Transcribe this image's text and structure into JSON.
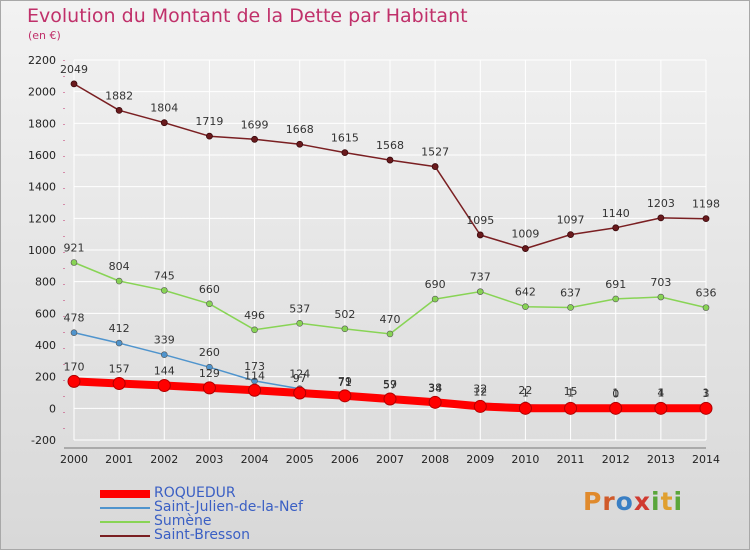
{
  "title": "Evolution du Montant de la Dette par Habitant",
  "subtitle": "(en €)",
  "logo": {
    "text": "Proxiti",
    "letters": [
      "P",
      "r",
      "o",
      "x",
      "i",
      "t",
      "i"
    ],
    "colors": [
      "#e08a2c",
      "#d05a2a",
      "#3a7fc4",
      "#d03a30",
      "#5aa63a",
      "#e0a030",
      "#5aa63a"
    ]
  },
  "chart_data": {
    "type": "line",
    "title": "Evolution du Montant de la Dette par Habitant",
    "subtitle": "(en €)",
    "x": [
      2000,
      2001,
      2002,
      2003,
      2004,
      2005,
      2006,
      2007,
      2008,
      2009,
      2010,
      2011,
      2012,
      2013,
      2014
    ],
    "ylim": [
      -200,
      2200
    ],
    "yticks": [
      -200,
      0,
      200,
      400,
      600,
      800,
      1000,
      1200,
      1400,
      1600,
      1800,
      2000,
      2200
    ],
    "grid": true,
    "legend_position": "bottom-left",
    "series": [
      {
        "name": "ROQUEDUR",
        "color": "#ff0000",
        "width": 8,
        "values": [
          170,
          157,
          144,
          129,
          114,
          97,
          79,
          59,
          38,
          12,
          0,
          0,
          0,
          0,
          0
        ],
        "labels": [
          170,
          157,
          144,
          129,
          114,
          97,
          79,
          59,
          38,
          12,
          null,
          null,
          null,
          null,
          null
        ]
      },
      {
        "name": "Saint-Julien-de-la-Nef",
        "color": "#4f94cd",
        "width": 1.5,
        "values": [
          478,
          412,
          339,
          260,
          173,
          124,
          71,
          57,
          34,
          32,
          22,
          15,
          0,
          4,
          3
        ],
        "labels": [
          478,
          412,
          339,
          260,
          173,
          124,
          71,
          57,
          34,
          32,
          22,
          15,
          0,
          4,
          3
        ]
      },
      {
        "name": "Sumène",
        "color": "#88d455",
        "width": 1.5,
        "values": [
          921,
          804,
          745,
          660,
          496,
          537,
          502,
          470,
          690,
          737,
          642,
          637,
          691,
          703,
          636
        ],
        "labels": [
          921,
          804,
          745,
          660,
          496,
          537,
          502,
          470,
          690,
          737,
          642,
          637,
          691,
          703,
          636
        ]
      },
      {
        "name": "Saint-Bresson",
        "color": "#7a1f22",
        "width": 1.5,
        "values": [
          2049,
          1882,
          1804,
          1719,
          1699,
          1668,
          1615,
          1568,
          1527,
          1095,
          1009,
          1097,
          1140,
          1203,
          1198
        ],
        "labels": [
          2049,
          1882,
          1804,
          1719,
          1699,
          1668,
          1615,
          1568,
          1527,
          1095,
          1009,
          1097,
          1140,
          1203,
          1198
        ]
      },
      {
        "name": "",
        "color": "#7a1f22",
        "width": 0,
        "values": [
          null,
          null,
          null,
          null,
          null,
          null,
          null,
          null,
          null,
          null,
          1,
          1,
          1,
          1,
          1
        ],
        "labels": [
          null,
          null,
          null,
          null,
          null,
          null,
          null,
          null,
          null,
          null,
          1,
          1,
          1,
          1,
          1
        ]
      }
    ]
  }
}
